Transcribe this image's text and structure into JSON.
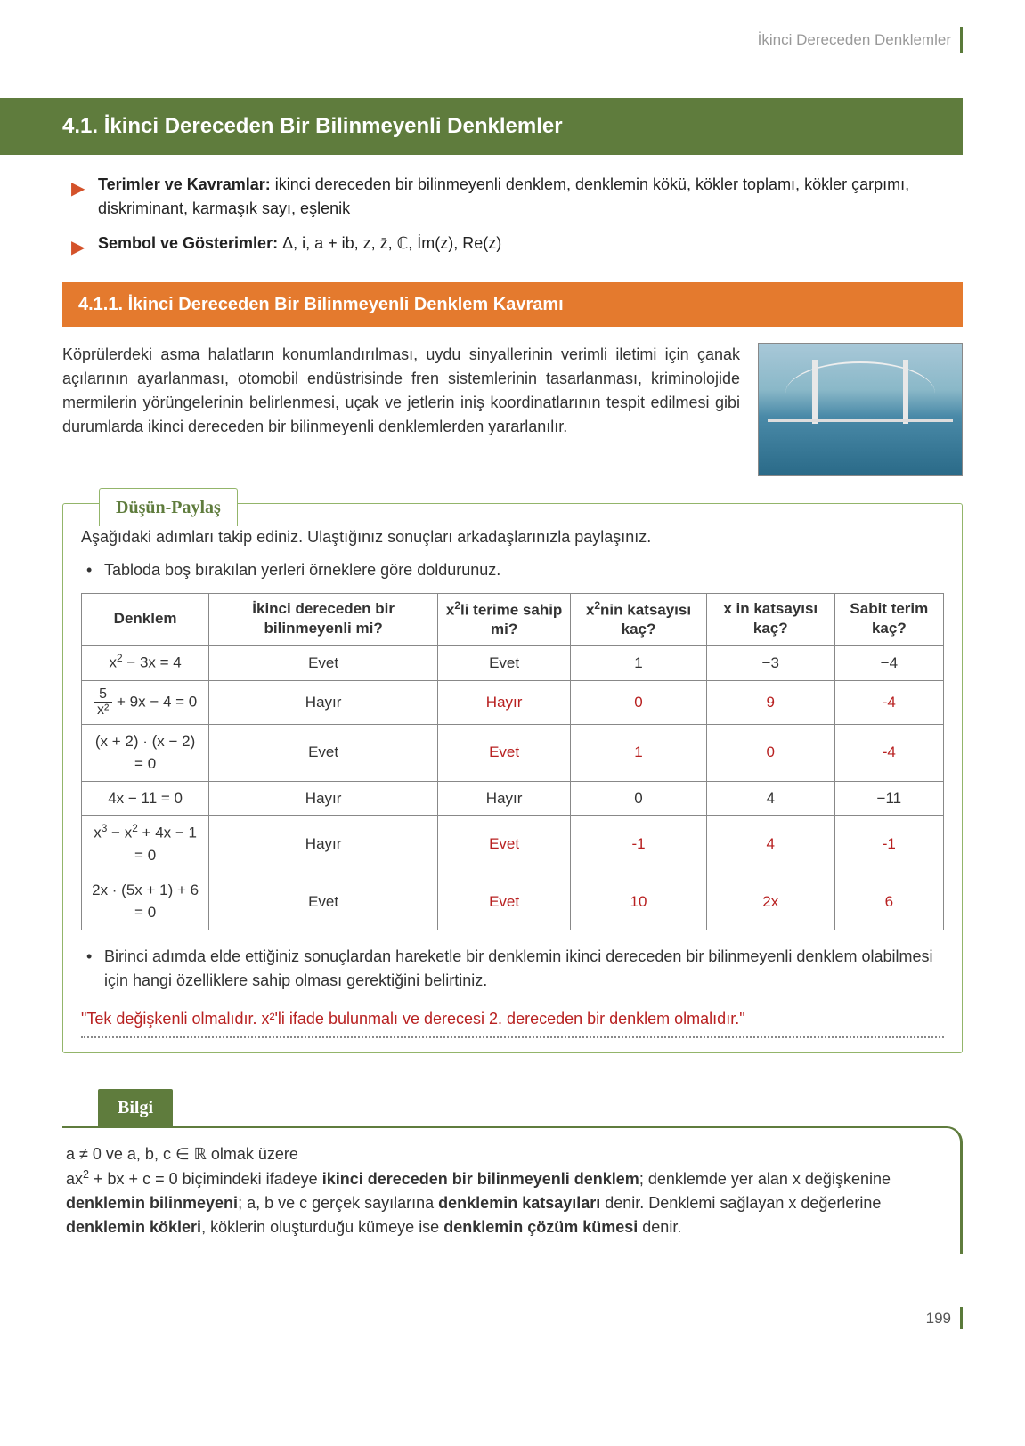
{
  "breadcrumb": "İkinci Dereceden Denklemler",
  "section_title": "4.1. İkinci Dereceden Bir Bilinmeyenli Denklemler",
  "bullets": {
    "terms_label": "Terimler ve Kavramlar:",
    "terms_text": " ikinci dereceden bir bilinmeyenli denklem, denklemin kökü, kökler toplamı, kökler çarpımı, diskriminant, karmaşık sayı, eşlenik",
    "symbols_label": "Sembol ve Gösterimler:",
    "symbols_text": " Δ, i, a + ib, z, z̄, ℂ, İm(z), Re(z)"
  },
  "subsection_title": "4.1.1. İkinci Dereceden Bir Bilinmeyenli Denklem Kavramı",
  "intro_paragraph": "Köprülerdeki asma halatların konumlandırılması, uydu sinyallerinin verimli iletimi için çanak açılarının ayarlanması, otomobil endüstrisinde fren sistemlerinin tasarlanması, kriminolojide mermilerin yörüngelerinin belirlenmesi, uçak ve jetlerin iniş koordinatlarının tespit edilmesi gibi durumlarda ikinci dereceden bir bilinmeyenli denklemlerden yararlanılır.",
  "dusun_tab": "Düşün-Paylaş",
  "dusun_intro": "Aşağıdaki adımları takip ediniz. Ulaştığınız sonuçları arkadaşlarınızla paylaşınız.",
  "dusun_sub1": "Tabloda boş bırakılan yerleri örneklere göre doldurunuz.",
  "table": {
    "headers": {
      "h1": "Denklem",
      "h2": "İkinci dereceden bir bilinmeyenli mi?",
      "h3_a": "x",
      "h3_b": "li terime sahip mi?",
      "h4_a": "x",
      "h4_b": "nin katsayısı kaç?",
      "h5": "x in katsayısı kaç?",
      "h6": "Sabit terim kaç?"
    },
    "rows": [
      {
        "eq_html": "x<sup>2</sup> − 3x = 4",
        "c2": "Evet",
        "c3": "Evet",
        "c3r": false,
        "c4": "1",
        "c4r": false,
        "c5": "−3",
        "c5r": false,
        "c6": "−4",
        "c6r": false
      },
      {
        "eq_html": "",
        "frac": true,
        "frac_num": "5",
        "frac_den": "x²",
        "frac_rest": " + 9x − 4 = 0",
        "c2": "Hayır",
        "c3": "Hayır",
        "c3r": true,
        "c4": "0",
        "c4r": true,
        "c5": "9",
        "c5r": true,
        "c6": "-4",
        "c6r": true
      },
      {
        "eq_html": "(x + 2) · (x − 2) = 0",
        "c2": "Evet",
        "c3": "Evet",
        "c3r": true,
        "c4": "1",
        "c4r": true,
        "c5": "0",
        "c5r": true,
        "c6": "-4",
        "c6r": true
      },
      {
        "eq_html": "4x − 11 = 0",
        "c2": "Hayır",
        "c3": "Hayır",
        "c3r": false,
        "c4": "0",
        "c4r": false,
        "c5": "4",
        "c5r": false,
        "c6": "−11",
        "c6r": false
      },
      {
        "eq_html": "x<sup>3</sup> − x<sup>2</sup> + 4x − 1 = 0",
        "c2": "Hayır",
        "c3": "Evet",
        "c3r": true,
        "c4": "-1",
        "c4r": true,
        "c5": "4",
        "c5r": true,
        "c6": "-1",
        "c6r": true
      },
      {
        "eq_html": "2x · (5x + 1) + 6 = 0",
        "c2": "Evet",
        "c3": "Evet",
        "c3r": true,
        "c4": "10",
        "c4r": true,
        "c5": "2x",
        "c5r": true,
        "c6": "6",
        "c6r": true
      }
    ]
  },
  "dusun_sub2": "Birinci adımda elde ettiğiniz sonuçlardan hareketle bir denklemin ikinci dereceden bir bilinmeyenli denklem olabilmesi için hangi özelliklere sahip olması gerektiğini belirtiniz.",
  "answer_line": "\"Tek değişkenli olmalıdır. x²'li ifade bulunmalı ve derecesi 2. dereceden bir denklem olmalıdır.\"",
  "bilgi_tab": "Bilgi",
  "bilgi": {
    "line1": "a ≠ 0 ve a, b, c ∈ ℝ olmak üzere",
    "pre2": "ax",
    "mid2": " + bx + c = 0 biçimindeki ifadeye ",
    "bold2a": "ikinci dereceden bir bilinmeyenli denklem",
    "post2a": "; denklemde yer alan x değişkenine ",
    "bold2b": "denklemin bilinmeyeni",
    "post2b": "; a, b ve c gerçek sayılarına ",
    "bold2c": "denklemin katsayıları",
    "post2c": " denir. Denklemi sağlayan x değerlerine ",
    "bold2d": "denklemin kökleri",
    "post2d": ", köklerin oluşturduğu kümeye ise ",
    "bold2e": "denklemin çözüm kümesi",
    "post2e": " denir."
  },
  "page_number": "199"
}
